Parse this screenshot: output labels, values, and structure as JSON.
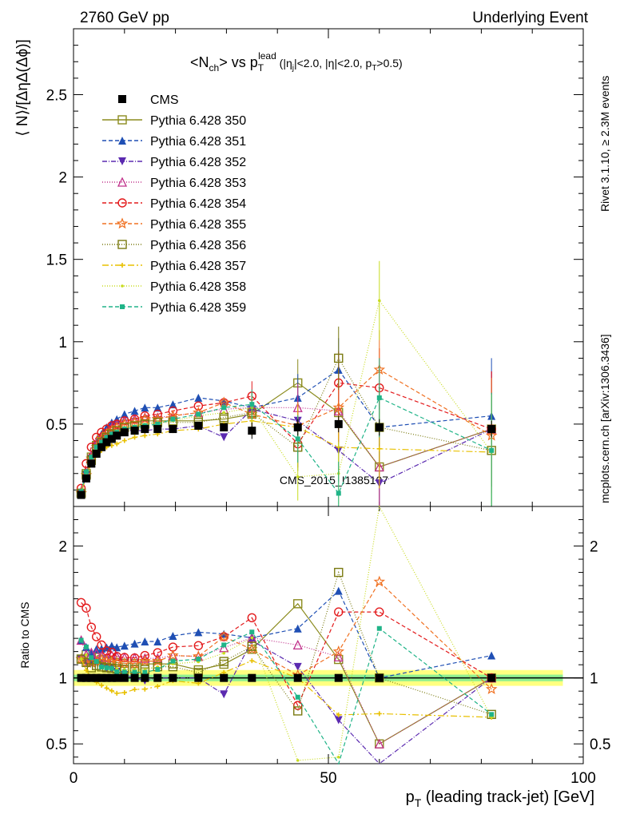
{
  "header": {
    "left": "2760 GeV pp",
    "right": "Underlying Event"
  },
  "side_labels": {
    "rivet": "Rivet 3.1.10, ≥ 2.3M events",
    "mcplots": "mcplots.cern.ch [arXiv:1306.3436]"
  },
  "watermark": "CMS_2015_I1385107",
  "colors": {
    "cms": "#000000",
    "350": "#8b8b1e",
    "351": "#1f4fb4",
    "352": "#5b2ab0",
    "353": "#c0308a",
    "354": "#e31a1c",
    "355": "#f07020",
    "356": "#7a7a10",
    "357": "#e8c000",
    "358": "#c8dc20",
    "359": "#20b488",
    "band_inner": "#90f090",
    "band_outer": "#ffff80"
  },
  "chart_data": [
    {
      "type": "line",
      "title": "<N_ch> vs p_T^lead (|η_j|<2.0, |η|<2.0, p_T>0.5)",
      "xlabel": "p_T (leading track-jet) [GeV]",
      "ylabel": "⟨ N⟩/[ΔηΔ(Δϕ)]",
      "xlim": [
        0,
        100
      ],
      "ylim": [
        0,
        2.9
      ],
      "yticks": [
        "0.5",
        "1",
        "1.5",
        "2",
        "2.5"
      ],
      "x": [
        1.5,
        2.5,
        3.5,
        4.5,
        5.5,
        6.5,
        7.5,
        8.5,
        10,
        12,
        14,
        16.5,
        19.5,
        24.5,
        29.5,
        35,
        44,
        52,
        60,
        82
      ],
      "legend_position": "top-left",
      "series": [
        {
          "name": "CMS",
          "key": "cms",
          "marker": "square-filled",
          "dash": "",
          "values": [
            0.07,
            0.17,
            0.26,
            0.32,
            0.36,
            0.39,
            0.41,
            0.43,
            0.45,
            0.46,
            0.47,
            0.47,
            0.47,
            0.49,
            0.48,
            0.46,
            0.48,
            0.5,
            0.48,
            0.47
          ]
        },
        {
          "name": "Pythia 6.428 350",
          "key": "350",
          "marker": "square-open",
          "dash": "",
          "values": [
            0.08,
            0.2,
            0.3,
            0.37,
            0.41,
            0.44,
            0.46,
            0.48,
            0.5,
            0.51,
            0.52,
            0.52,
            0.52,
            0.52,
            0.53,
            0.56,
            0.75,
            0.57,
            0.24,
            0.47
          ]
        },
        {
          "name": "Pythia 6.428 351",
          "key": "351",
          "marker": "triangle-up",
          "dash": "5,3",
          "values": [
            0.09,
            0.21,
            0.31,
            0.39,
            0.44,
            0.48,
            0.51,
            0.53,
            0.56,
            0.58,
            0.6,
            0.6,
            0.62,
            0.66,
            0.64,
            0.6,
            0.66,
            0.83,
            0.48,
            0.55
          ]
        },
        {
          "name": "Pythia 6.428 352",
          "key": "352",
          "marker": "triangle-down",
          "dash": "6,2,1,2",
          "values": [
            0.08,
            0.19,
            0.29,
            0.36,
            0.4,
            0.42,
            0.44,
            0.45,
            0.46,
            0.46,
            0.46,
            0.47,
            0.47,
            0.49,
            0.42,
            0.59,
            0.52,
            0.34,
            0.14,
            0.47
          ]
        },
        {
          "name": "Pythia 6.428 353",
          "key": "353",
          "marker": "triangle-up-open",
          "dash": "1,2",
          "values": [
            0.09,
            0.2,
            0.31,
            0.38,
            0.42,
            0.45,
            0.48,
            0.5,
            0.52,
            0.53,
            0.54,
            0.54,
            0.55,
            0.57,
            0.59,
            0.6,
            0.6,
            0.58,
            0.24,
            0.47
          ]
        },
        {
          "name": "Pythia 6.428 354",
          "key": "354",
          "marker": "circle-open",
          "dash": "5,3",
          "values": [
            0.11,
            0.26,
            0.36,
            0.42,
            0.45,
            0.47,
            0.49,
            0.5,
            0.52,
            0.53,
            0.55,
            0.56,
            0.58,
            0.61,
            0.63,
            0.67,
            0.38,
            0.75,
            0.72,
            0.47
          ]
        },
        {
          "name": "Pythia 6.428 355",
          "key": "355",
          "marker": "star-open",
          "dash": "5,3",
          "values": [
            0.08,
            0.19,
            0.29,
            0.36,
            0.41,
            0.44,
            0.46,
            0.48,
            0.5,
            0.51,
            0.53,
            0.53,
            0.55,
            0.57,
            0.63,
            0.56,
            0.49,
            0.6,
            0.83,
            0.43
          ]
        },
        {
          "name": "Pythia 6.428 356",
          "key": "356",
          "marker": "square-open",
          "dash": "1,2",
          "values": [
            0.08,
            0.19,
            0.28,
            0.35,
            0.39,
            0.42,
            0.44,
            0.46,
            0.48,
            0.49,
            0.5,
            0.51,
            0.51,
            0.51,
            0.54,
            0.57,
            0.36,
            0.9,
            0.48,
            0.34
          ]
        },
        {
          "name": "Pythia 6.428 357",
          "key": "357",
          "marker": "cross-small",
          "dash": "8,3,2,3",
          "values": [
            0.08,
            0.18,
            0.26,
            0.31,
            0.34,
            0.36,
            0.37,
            0.38,
            0.4,
            0.42,
            0.43,
            0.44,
            0.46,
            0.47,
            0.5,
            0.52,
            0.48,
            0.36,
            0.35,
            0.33
          ]
        },
        {
          "name": "Pythia 6.428 358",
          "key": "358",
          "marker": "dot",
          "dash": "1,2",
          "values": [
            0.08,
            0.2,
            0.3,
            0.36,
            0.39,
            0.42,
            0.44,
            0.46,
            0.48,
            0.49,
            0.5,
            0.51,
            0.52,
            0.55,
            0.57,
            0.6,
            0.18,
            0.2,
            1.25,
            0.33
          ]
        },
        {
          "name": "Pythia 6.428 359",
          "key": "359",
          "marker": "square-small",
          "dash": "5,3",
          "values": [
            0.09,
            0.21,
            0.3,
            0.36,
            0.39,
            0.42,
            0.44,
            0.45,
            0.47,
            0.48,
            0.49,
            0.5,
            0.53,
            0.56,
            0.6,
            0.62,
            0.41,
            0.08,
            0.66,
            0.34
          ]
        }
      ]
    },
    {
      "type": "line",
      "ylabel": "Ratio to CMS",
      "xlabel": "p_T (leading track-jet) [GeV]",
      "xlim": [
        0,
        100
      ],
      "ylim": [
        0.35,
        2.3
      ],
      "xticks": [
        "0",
        "50",
        "100"
      ],
      "yticks": [
        "0.5",
        "1",
        "2"
      ],
      "reference": 1.0,
      "band": {
        "inner": 0.025,
        "outer": 0.06
      }
    }
  ]
}
